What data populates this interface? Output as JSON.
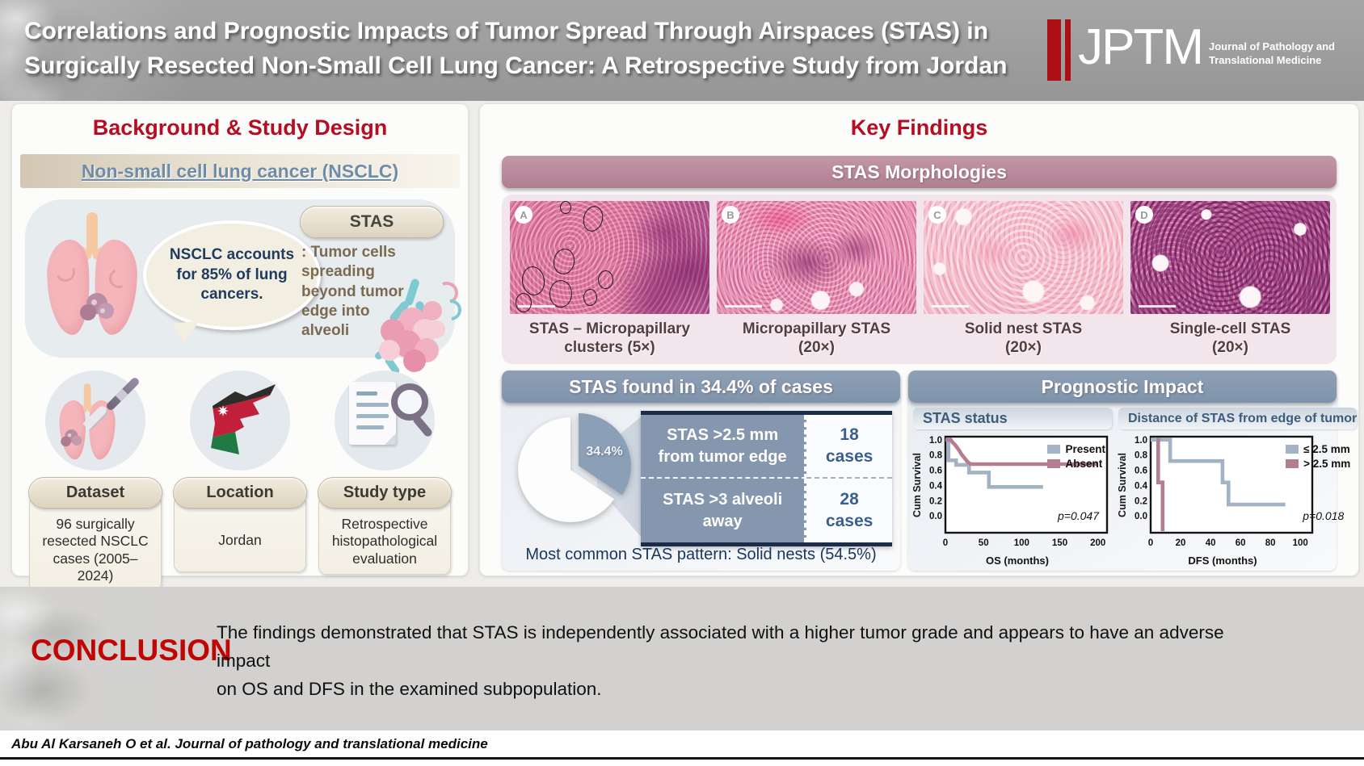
{
  "header": {
    "title": "Correlations and Prognostic Impacts of Tumor Spread Through Airspaces (STAS) in\nSurgically Resected Non-Small Cell Lung Cancer: A Retrospective Study from Jordan",
    "logo": {
      "acronym": "JPTM",
      "name": "Journal of Pathology and\nTranslational Medicine"
    }
  },
  "left_panel": {
    "title": "Background & Study Design",
    "nsclc_banner": "Non-small cell lung cancer (NSCLC)",
    "bubble": "NSCLC accounts\nfor 85% of lung\ncancers.",
    "stas_pill": "STAS",
    "stas_definition": ": Tumor cells\nspreading\nbeyond tumor\nedge into\nalveoli",
    "facts": [
      {
        "label": "Dataset",
        "value": "96 surgically\nresected NSCLC\ncases (2005–2024)",
        "icon": "lungs-scalpel-icon"
      },
      {
        "label": "Location",
        "value": "Jordan",
        "icon": "jordan-map-icon"
      },
      {
        "label": "Study type",
        "value": "Retrospective\nhistopathological\nevaluation",
        "icon": "document-magnifier-icon"
      }
    ]
  },
  "right_panel": {
    "title": "Key Findings",
    "morphologies": {
      "banner": "STAS Morphologies",
      "items": [
        {
          "letter": "A",
          "caption": "STAS – Micropapillary\nclusters (5×)"
        },
        {
          "letter": "B",
          "caption": "Micropapillary STAS\n(20×)"
        },
        {
          "letter": "C",
          "caption": "Solid nest STAS\n(20×)"
        },
        {
          "letter": "D",
          "caption": "Single-cell STAS\n(20×)"
        }
      ]
    },
    "stas_found": {
      "banner": "STAS found in 34.4% of cases",
      "pie_label": "34.4%",
      "rows": [
        {
          "label": "STAS >2.5 mm\nfrom tumor edge",
          "value": "18\ncases"
        },
        {
          "label": "STAS >3 alveoli\naway",
          "value": "28\ncases"
        }
      ],
      "footnote": "Most common STAS pattern: Solid nests (54.5%)"
    },
    "prognostic": {
      "banner": "Prognostic Impact"
    }
  },
  "conclusion": {
    "label": "CONCLUSION",
    "text": "The findings demonstrated that STAS is independently associated with a higher tumor grade and appears to have an adverse impact\non OS and DFS in the examined subpopulation."
  },
  "footer": {
    "citation": "Abu Al Karsaneh O et al. Journal of pathology and translational medicine"
  },
  "colors": {
    "accent_red": "#b50d22",
    "slate_banner": "#8497ae",
    "mauve_banner": "#ba8a9c",
    "navy": "#1d2c49",
    "curve_blue": "#a2b3c5",
    "curve_mauve": "#b27e90"
  },
  "chart_data": [
    {
      "type": "pie",
      "title": "STAS found in 34.4% of cases",
      "slices": [
        {
          "label": "STAS present",
          "value": 34.4,
          "color": "#8ba0b7"
        },
        {
          "label": "STAS absent",
          "value": 65.6,
          "color": "#fdfdfd"
        }
      ],
      "label": "34.4%"
    },
    {
      "type": "line",
      "subtype": "kaplan_meier_step",
      "title": "STAS status",
      "xlabel": "OS (months)",
      "ylabel": "Cum Survival",
      "xlim": [
        0,
        212
      ],
      "ylim": [
        -0.22,
        1.04
      ],
      "xticks": [
        0,
        50,
        100,
        150,
        200
      ],
      "yticks": [
        0.0,
        0.2,
        0.4,
        0.6,
        0.8,
        1.0
      ],
      "p_value": "p=0.047",
      "legend_position": "top-right",
      "grid": false,
      "series": [
        {
          "name": "Present",
          "color": "#a2b3c5",
          "points": [
            [
              0,
              1.0
            ],
            [
              4,
              1.0
            ],
            [
              4,
              0.73
            ],
            [
              14,
              0.73
            ],
            [
              14,
              0.67
            ],
            [
              31,
              0.67
            ],
            [
              31,
              0.57
            ],
            [
              57,
              0.57
            ],
            [
              57,
              0.38
            ],
            [
              128,
              0.38
            ]
          ]
        },
        {
          "name": "Absent",
          "color": "#b27e90",
          "points": [
            [
              0,
              1.0
            ],
            [
              7,
              1.0
            ],
            [
              9,
              0.97
            ],
            [
              12,
              0.94
            ],
            [
              15,
              0.9
            ],
            [
              18,
              0.86
            ],
            [
              21,
              0.81
            ],
            [
              25,
              0.76
            ],
            [
              29,
              0.71
            ],
            [
              33,
              0.68
            ],
            [
              200,
              0.68
            ]
          ]
        }
      ]
    },
    {
      "type": "line",
      "subtype": "kaplan_meier_step",
      "title": "Distance of STAS from edge of tumor",
      "xlabel": "DFS (months)",
      "ylabel": "Cum Survival",
      "xlim": [
        0,
        108
      ],
      "ylim": [
        -0.22,
        1.04
      ],
      "xticks": [
        0,
        20,
        40,
        60,
        80,
        100
      ],
      "yticks": [
        0.0,
        0.2,
        0.4,
        0.6,
        0.8,
        1.0
      ],
      "p_value": "p=0.018",
      "legend_position": "top-right",
      "grid": false,
      "series": [
        {
          "name": "≤ 2.5 mm",
          "color": "#a2b3c5",
          "points": [
            [
              0,
              1.0
            ],
            [
              13,
              1.0
            ],
            [
              13,
              0.72
            ],
            [
              48,
              0.72
            ],
            [
              48,
              0.44
            ],
            [
              52,
              0.44
            ],
            [
              52,
              0.15
            ],
            [
              90,
              0.15
            ]
          ]
        },
        {
          "name": "> 2.5 mm",
          "color": "#b27e90",
          "points": [
            [
              4,
              1.0
            ],
            [
              5,
              1.0
            ],
            [
              5,
              0.44
            ],
            [
              8,
              0.44
            ],
            [
              8,
              -0.2
            ]
          ]
        }
      ]
    }
  ]
}
